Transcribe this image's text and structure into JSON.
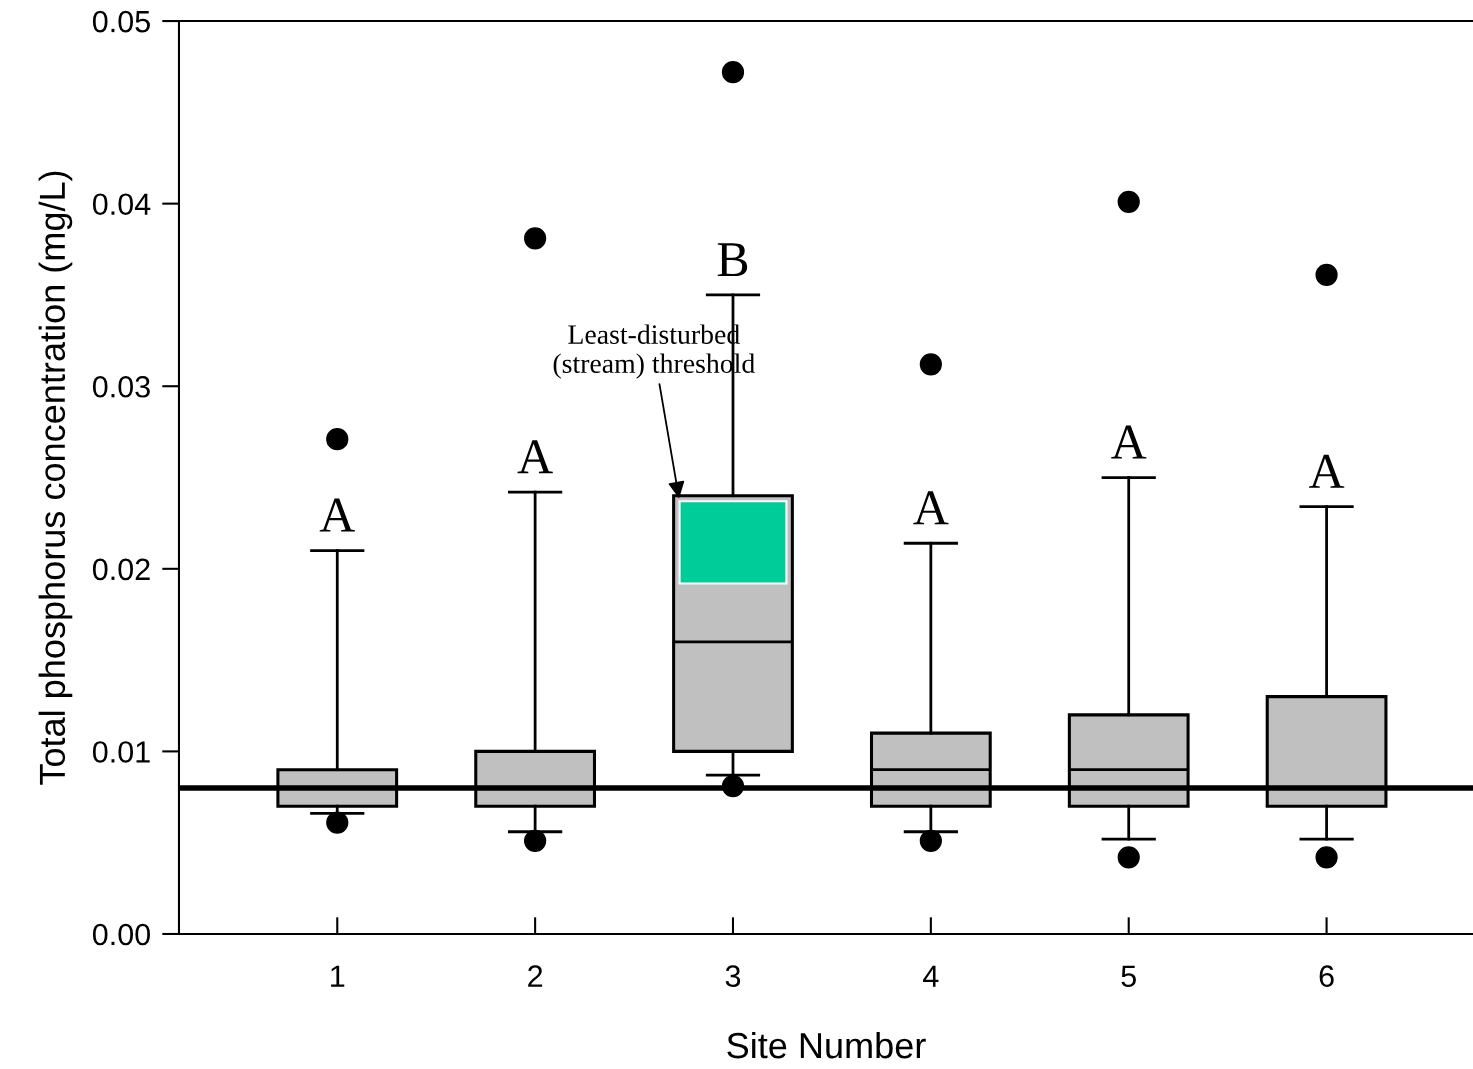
{
  "chart_data": {
    "type": "box",
    "xlabel": "Site Number",
    "ylabel": "Total phosphorus concentration (mg/L)",
    "categories": [
      "1",
      "2",
      "3",
      "4",
      "5",
      "6"
    ],
    "color": "#c0c0c0",
    "boxes": [
      {
        "low": 0.0066,
        "q1": 0.007,
        "median": 0.008,
        "q3": 0.009,
        "high": 0.021,
        "outliers": [
          0.0271,
          0.0061
        ]
      },
      {
        "low": 0.0056,
        "q1": 0.007,
        "median": 0.008,
        "q3": 0.01,
        "high": 0.0242,
        "outliers": [
          0.0381,
          0.0051
        ]
      },
      {
        "low": 0.0087,
        "q1": 0.01,
        "median": 0.016,
        "q3": 0.024,
        "high": 0.035,
        "outliers": [
          0.0472,
          0.0081
        ]
      },
      {
        "low": 0.0056,
        "q1": 0.007,
        "median": 0.009,
        "q3": 0.011,
        "high": 0.0214,
        "outliers": [
          0.0312,
          0.0051
        ]
      },
      {
        "low": 0.0052,
        "q1": 0.007,
        "median": 0.009,
        "q3": 0.012,
        "high": 0.025,
        "outliers": [
          0.0401,
          0.0042
        ]
      },
      {
        "low": 0.0052,
        "q1": 0.007,
        "median": 0.008,
        "q3": 0.013,
        "high": 0.0234,
        "outliers": [
          0.0361,
          0.0042
        ]
      }
    ],
    "ylim": [
      0,
      0.05
    ],
    "yticks": [
      {
        "value": 0,
        "label": "0.00"
      },
      0.01,
      0.02,
      0.03,
      0.04,
      0.05
    ],
    "ref_lines": [
      {
        "axis": "y",
        "value": 0.008,
        "color": "#000000"
      }
    ],
    "bands": [
      {
        "axis": "y",
        "from": 0.0192,
        "to": 0.0237,
        "label": "Least-disturbed\n(stream) threshold",
        "color": "#00cc99"
      }
    ],
    "annotations": [
      {
        "text": "A",
        "x": "1",
        "y": 0.021
      },
      {
        "text": "A",
        "x": "2",
        "y": 0.0242
      },
      {
        "text": "B",
        "x": "3",
        "y": 0.035
      },
      {
        "text": "A",
        "x": "4",
        "y": 0.0214
      },
      {
        "text": "A",
        "x": "5",
        "y": 0.025
      },
      {
        "text": "A",
        "x": "6",
        "y": 0.0234
      }
    ],
    "grid": false
  }
}
